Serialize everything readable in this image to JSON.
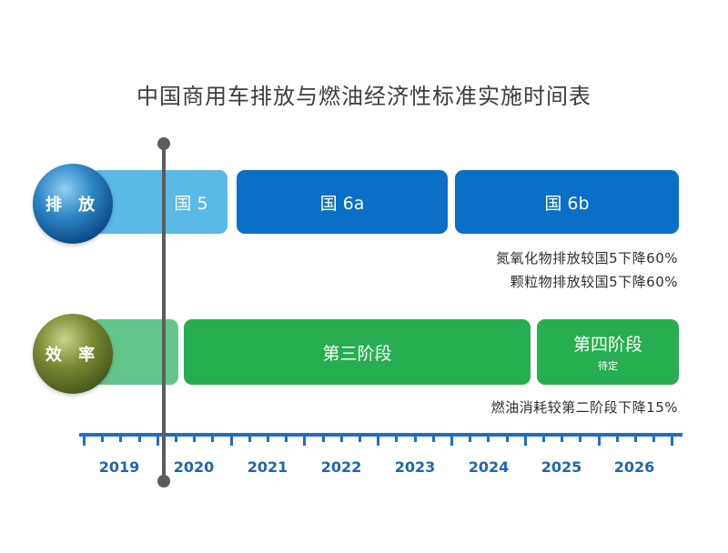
{
  "title": "中国商用车排放与燃油经济性标准实施时间表",
  "emissions": {
    "label": "排 放",
    "bars": [
      "国 5",
      "国 6a",
      "国 6b"
    ],
    "notes": [
      "氮氧化物排放较国5下降60%",
      "颗粒物排放较国5下降60%"
    ]
  },
  "efficiency": {
    "label": "效 率",
    "bars": [
      {
        "label": "",
        "sub": ""
      },
      {
        "label": "第三阶段",
        "sub": ""
      },
      {
        "label": "第四阶段",
        "sub": "待定"
      }
    ],
    "notes": [
      "燃油消耗较第二阶段下降15%"
    ]
  },
  "axis": {
    "years": [
      "2019",
      "2020",
      "2021",
      "2022",
      "2023",
      "2024",
      "2025",
      "2026"
    ]
  },
  "colors": {
    "light_blue": "#5ab9e6",
    "blue": "#0a6fc6",
    "light_green": "#64c58c",
    "green": "#27ae50",
    "axis": "#1f6fc0",
    "marker": "#5c5c5c"
  }
}
